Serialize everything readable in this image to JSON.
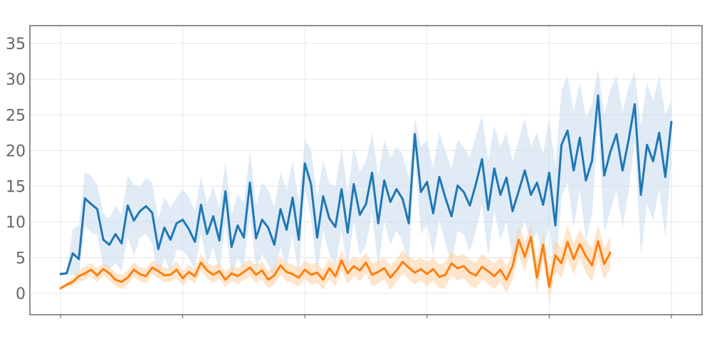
{
  "chart_data": {
    "type": "line",
    "title": "",
    "xlabel": "",
    "ylabel": "",
    "x_range": [
      0,
      500
    ],
    "ylim": [
      -3,
      37.5
    ],
    "y_ticks": [
      0,
      5,
      10,
      15,
      20,
      25,
      30,
      35
    ],
    "x_tick_positions": [
      0,
      100,
      200,
      300,
      400,
      500
    ],
    "grid": true,
    "legend": "none",
    "series": [
      {
        "color": "#1f77b4",
        "band_color": "#c6dbef",
        "x": [
          0,
          5,
          10,
          15,
          20,
          25,
          30,
          35,
          40,
          45,
          50,
          55,
          60,
          65,
          70,
          75,
          80,
          85,
          90,
          95,
          100,
          105,
          110,
          115,
          120,
          125,
          130,
          135,
          140,
          145,
          150,
          155,
          160,
          165,
          170,
          175,
          180,
          185,
          190,
          195,
          200,
          205,
          210,
          215,
          220,
          225,
          230,
          235,
          240,
          245,
          250,
          255,
          260,
          265,
          270,
          275,
          280,
          285,
          290,
          295,
          300,
          305,
          310,
          315,
          320,
          325,
          330,
          335,
          340,
          345,
          350,
          355,
          360,
          365,
          370,
          375,
          380,
          385,
          390,
          395,
          400,
          405,
          410,
          415,
          420,
          425,
          430,
          435,
          440,
          445,
          450,
          455,
          460,
          465,
          470,
          475,
          480,
          485,
          490,
          495,
          500
        ],
        "values": [
          2.7,
          2.8,
          5.6,
          4.8,
          13.3,
          12.5,
          11.8,
          7.5,
          6.8,
          8.3,
          7.0,
          12.3,
          10.2,
          11.5,
          12.2,
          11.3,
          6.2,
          9.2,
          7.5,
          9.8,
          10.3,
          9.0,
          7.2,
          12.4,
          8.3,
          10.8,
          7.4,
          14.3,
          6.5,
          9.5,
          7.8,
          15.5,
          7.7,
          10.3,
          9.2,
          6.8,
          11.8,
          8.9,
          13.4,
          7.5,
          18.2,
          15.3,
          7.8,
          13.6,
          10.5,
          9.3,
          14.6,
          8.5,
          15.3,
          11.0,
          12.5,
          16.9,
          9.8,
          15.8,
          12.8,
          14.6,
          13.2,
          9.8,
          22.3,
          14.2,
          15.6,
          11.2,
          16.3,
          13.4,
          10.8,
          15.1,
          14.2,
          12.3,
          15.3,
          18.8,
          11.7,
          17.5,
          13.8,
          16.2,
          11.5,
          14.3,
          17.2,
          13.8,
          15.5,
          12.4,
          16.9,
          9.5,
          20.8,
          22.8,
          17.2,
          21.8,
          15.8,
          18.6,
          27.7,
          16.5,
          19.8,
          22.3,
          17.2,
          21.5,
          26.5,
          13.8,
          20.8,
          18.5,
          22.5,
          16.3,
          24.0
        ],
        "upper": [
          2.9,
          3.0,
          9.0,
          9.5,
          17.0,
          16.5,
          15.2,
          11.2,
          10.5,
          12.3,
          11.0,
          16.5,
          15.2,
          15.0,
          16.2,
          15.5,
          10.5,
          13.5,
          12.0,
          13.5,
          14.5,
          13.5,
          11.5,
          16.5,
          12.5,
          15.0,
          12.0,
          18.5,
          11.0,
          14.0,
          12.5,
          20.0,
          12.5,
          15.5,
          14.5,
          12.0,
          17.0,
          14.5,
          18.5,
          13.0,
          21.5,
          20.2,
          13.5,
          18.5,
          15.5,
          15.0,
          20.5,
          14.0,
          20.5,
          17.0,
          18.5,
          22.5,
          16.5,
          21.5,
          19.0,
          20.5,
          19.5,
          16.0,
          24.5,
          20.5,
          21.5,
          17.5,
          22.5,
          20.0,
          17.5,
          21.5,
          20.5,
          19.0,
          22.0,
          25.0,
          18.5,
          23.5,
          20.5,
          22.5,
          18.5,
          21.5,
          24.5,
          20.5,
          22.5,
          19.5,
          24.5,
          17.5,
          28.5,
          30.5,
          25.5,
          29.5,
          24.5,
          26.5,
          31.5,
          25.0,
          28.5,
          30.5,
          25.5,
          29.0,
          31.0,
          23.5,
          29.5,
          27.0,
          30.5,
          25.0,
          27.0
        ],
        "lower": [
          2.5,
          2.6,
          2.6,
          2.4,
          9.5,
          8.5,
          8.2,
          3.8,
          3.4,
          4.2,
          3.2,
          8.0,
          5.2,
          7.8,
          8.3,
          7.0,
          2.0,
          5.0,
          3.0,
          6.0,
          6.0,
          5.0,
          3.2,
          8.5,
          4.0,
          6.5,
          3.0,
          10.0,
          2.2,
          5.0,
          3.5,
          11.0,
          3.2,
          5.5,
          4.0,
          1.8,
          6.5,
          3.5,
          8.2,
          2.2,
          14.8,
          10.5,
          2.5,
          8.8,
          5.5,
          3.8,
          8.8,
          3.2,
          10.2,
          5.2,
          6.8,
          11.2,
          3.5,
          10.2,
          6.8,
          8.8,
          7.2,
          3.8,
          19.8,
          8.2,
          9.8,
          5.2,
          10.2,
          7.0,
          4.2,
          8.8,
          8.2,
          5.8,
          8.8,
          12.5,
          5.2,
          11.5,
          7.5,
          10.0,
          4.8,
          7.5,
          10.2,
          7.0,
          8.5,
          5.5,
          9.5,
          2.0,
          13.5,
          15.5,
          9.2,
          14.5,
          7.5,
          11.0,
          23.8,
          8.5,
          11.5,
          14.5,
          9.2,
          14.2,
          21.5,
          5.5,
          12.5,
          10.2,
          14.5,
          7.8,
          18.5
        ]
      },
      {
        "color": "#ff7f0e",
        "band_color": "#fdd0a2",
        "x": [
          0,
          5,
          10,
          15,
          20,
          25,
          30,
          35,
          40,
          45,
          50,
          55,
          60,
          65,
          70,
          75,
          80,
          85,
          90,
          95,
          100,
          105,
          110,
          115,
          120,
          125,
          130,
          135,
          140,
          145,
          150,
          155,
          160,
          165,
          170,
          175,
          180,
          185,
          190,
          195,
          200,
          205,
          210,
          215,
          220,
          225,
          230,
          235,
          240,
          245,
          250,
          255,
          260,
          265,
          270,
          275,
          280,
          285,
          290,
          295,
          300,
          305,
          310,
          315,
          320,
          325,
          330,
          335,
          340,
          345,
          350,
          355,
          360,
          365,
          370,
          375,
          380,
          385,
          390,
          395,
          400,
          405,
          410,
          415,
          420,
          425,
          430,
          435,
          440,
          445,
          450
        ],
        "values": [
          0.7,
          1.2,
          1.6,
          2.4,
          2.8,
          3.3,
          2.5,
          3.4,
          2.8,
          1.9,
          1.6,
          2.2,
          3.3,
          2.7,
          2.4,
          3.6,
          3.1,
          2.5,
          2.6,
          3.3,
          2.1,
          3.0,
          2.4,
          4.3,
          3.2,
          2.6,
          3.1,
          1.9,
          2.8,
          2.4,
          3.0,
          3.6,
          2.6,
          3.2,
          1.9,
          2.5,
          3.9,
          3.0,
          2.7,
          2.2,
          3.3,
          2.6,
          2.9,
          1.9,
          3.5,
          2.4,
          4.6,
          2.8,
          3.8,
          3.2,
          4.3,
          2.6,
          3.0,
          3.5,
          2.2,
          3.2,
          4.4,
          3.6,
          2.9,
          3.4,
          2.7,
          3.4,
          2.3,
          2.6,
          4.2,
          3.5,
          3.8,
          2.9,
          2.5,
          3.7,
          3.1,
          2.4,
          3.3,
          1.9,
          3.8,
          7.5,
          5.1,
          7.9,
          2.2,
          6.8,
          0.9,
          5.3,
          4.2,
          7.2,
          4.8,
          6.9,
          5.2,
          3.9,
          7.3,
          4.1,
          5.7
        ],
        "upper": [
          0.8,
          1.5,
          2.2,
          3.2,
          3.8,
          4.2,
          3.5,
          4.2,
          3.8,
          2.8,
          2.6,
          3.2,
          4.3,
          3.7,
          3.4,
          4.6,
          4.1,
          3.5,
          3.6,
          4.5,
          3.1,
          4.0,
          3.4,
          5.5,
          4.3,
          3.8,
          4.2,
          3.0,
          3.9,
          3.5,
          4.2,
          4.8,
          3.8,
          4.5,
          3.1,
          3.8,
          5.2,
          4.3,
          4.0,
          3.5,
          4.6,
          4.0,
          4.3,
          3.3,
          4.9,
          3.9,
          6.0,
          4.3,
          5.2,
          4.7,
          5.8,
          4.2,
          4.6,
          5.0,
          3.9,
          4.8,
          6.0,
          5.2,
          4.6,
          5.0,
          4.4,
          5.0,
          4.0,
          4.4,
          5.9,
          5.2,
          5.5,
          4.7,
          4.3,
          5.5,
          4.9,
          4.2,
          5.1,
          3.8,
          5.7,
          9.5,
          7.2,
          9.6,
          4.5,
          8.6,
          3.0,
          7.5,
          6.3,
          9.5,
          7.0,
          8.9,
          7.5,
          6.2,
          9.6,
          6.3,
          7.9
        ],
        "lower": [
          0.6,
          0.9,
          1.0,
          1.6,
          1.8,
          2.4,
          1.5,
          2.6,
          1.8,
          1.0,
          0.6,
          1.2,
          2.3,
          1.7,
          1.4,
          2.6,
          2.1,
          1.5,
          1.6,
          2.1,
          1.1,
          2.0,
          1.4,
          3.1,
          2.1,
          1.4,
          2.0,
          0.8,
          1.7,
          1.3,
          1.8,
          2.4,
          1.4,
          1.9,
          0.7,
          1.2,
          2.6,
          1.7,
          1.4,
          0.9,
          2.0,
          1.2,
          1.5,
          0.5,
          2.1,
          0.9,
          3.2,
          1.3,
          2.4,
          1.7,
          2.8,
          1.0,
          1.4,
          2.0,
          0.5,
          1.6,
          2.8,
          2.0,
          1.2,
          1.8,
          1.0,
          1.8,
          0.6,
          0.8,
          2.5,
          1.8,
          2.1,
          1.1,
          0.7,
          1.9,
          1.3,
          0.6,
          1.5,
          0.0,
          1.9,
          5.5,
          3.0,
          6.2,
          -0.1,
          5.0,
          -1.2,
          3.1,
          2.1,
          4.9,
          2.6,
          4.9,
          2.9,
          1.6,
          5.0,
          1.9,
          3.5
        ]
      }
    ]
  }
}
